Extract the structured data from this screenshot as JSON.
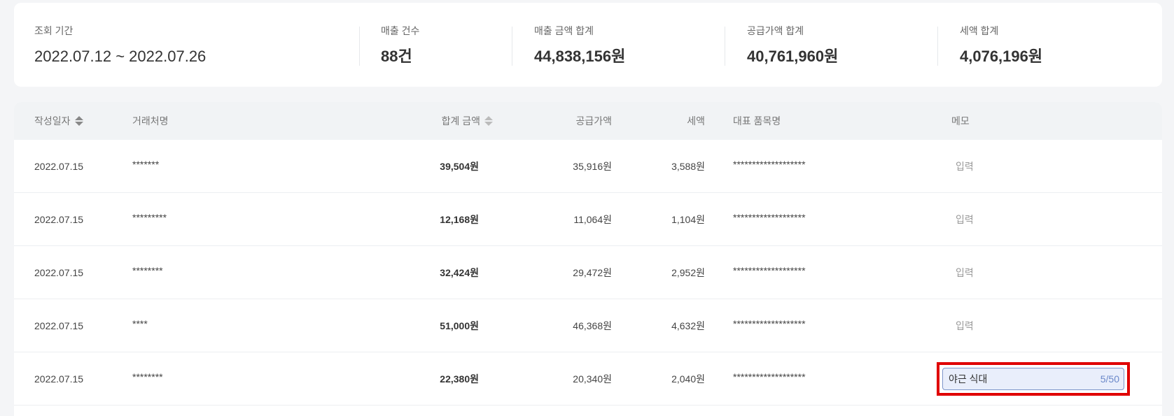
{
  "summary": {
    "period_label": "조회 기간",
    "period_value": "2022.07.12 ~ 2022.07.26",
    "count_label": "매출 건수",
    "count_value": "88건",
    "sales_total_label": "매출 금액 합계",
    "sales_total_value": "44,838,156원",
    "supply_total_label": "공급가액 합계",
    "supply_total_value": "40,761,960원",
    "tax_total_label": "세액 합계",
    "tax_total_value": "4,076,196원"
  },
  "table": {
    "columns": {
      "date": "작성일자",
      "vendor": "거래처명",
      "total": "합계 금액",
      "supply": "공급가액",
      "tax": "세액",
      "item": "대표 품목명",
      "memo": "메모"
    },
    "rows": [
      {
        "date": "2022.07.15",
        "vendor": "*******",
        "total": "39,504원",
        "supply": "35,916원",
        "tax": "3,588원",
        "item": "*******************",
        "memo": "입력"
      },
      {
        "date": "2022.07.15",
        "vendor": "*********",
        "total": "12,168원",
        "supply": "11,064원",
        "tax": "1,104원",
        "item": "*******************",
        "memo": "입력"
      },
      {
        "date": "2022.07.15",
        "vendor": "********",
        "total": "32,424원",
        "supply": "29,472원",
        "tax": "2,952원",
        "item": "*******************",
        "memo": "입력"
      },
      {
        "date": "2022.07.15",
        "vendor": "****",
        "total": "51,000원",
        "supply": "46,368원",
        "tax": "4,632원",
        "item": "*******************",
        "memo": "입력"
      },
      {
        "date": "2022.07.15",
        "vendor": "********",
        "total": "22,380원",
        "supply": "20,340원",
        "tax": "2,040원",
        "item": "*******************",
        "memo_input_value": "야근 식대",
        "memo_counter": "5/50"
      }
    ]
  },
  "colors": {
    "highlight": "#e00000",
    "input_border": "#7d95c9",
    "input_bg": "#e9eefb",
    "counter": "#6b88c9"
  }
}
